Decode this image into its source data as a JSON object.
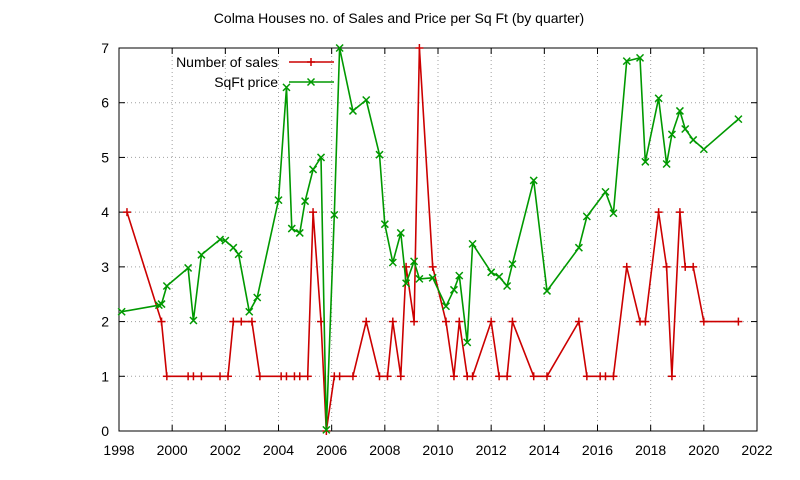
{
  "chart_data": {
    "type": "line",
    "title": "Colma Houses no. of Sales and Price per Sq Ft (by quarter)",
    "xlabel": "",
    "ylabel": "",
    "xlim": [
      1998,
      2022
    ],
    "ylim": [
      0,
      7
    ],
    "x_ticks": [
      1998,
      2000,
      2002,
      2004,
      2006,
      2008,
      2010,
      2012,
      2014,
      2016,
      2018,
      2020,
      2022
    ],
    "y_ticks": [
      0,
      1,
      2,
      3,
      4,
      5,
      6,
      7
    ],
    "grid": true,
    "legend_position": "top-left",
    "series": [
      {
        "name": "Number of sales",
        "color": "#cc0000",
        "marker": "plus",
        "points": [
          [
            1998.3,
            4
          ],
          [
            1999.6,
            2
          ],
          [
            1999.8,
            1
          ],
          [
            2000.6,
            1
          ],
          [
            2000.8,
            1
          ],
          [
            2001.1,
            1
          ],
          [
            2001.8,
            1
          ],
          [
            2002.1,
            1
          ],
          [
            2002.3,
            2
          ],
          [
            2002.6,
            2
          ],
          [
            2003.0,
            2
          ],
          [
            2003.3,
            1
          ],
          [
            2004.1,
            1
          ],
          [
            2004.3,
            1
          ],
          [
            2004.6,
            1
          ],
          [
            2004.8,
            1
          ],
          [
            2005.1,
            1
          ],
          [
            2005.3,
            4
          ],
          [
            2005.6,
            2
          ],
          [
            2005.8,
            0
          ],
          [
            2006.1,
            1
          ],
          [
            2006.3,
            1
          ],
          [
            2006.8,
            1
          ],
          [
            2007.3,
            2
          ],
          [
            2007.8,
            1
          ],
          [
            2008.1,
            1
          ],
          [
            2008.3,
            2
          ],
          [
            2008.6,
            1
          ],
          [
            2008.8,
            3
          ],
          [
            2009.1,
            2
          ],
          [
            2009.3,
            7
          ],
          [
            2009.8,
            3
          ],
          [
            2010.3,
            2
          ],
          [
            2010.6,
            1
          ],
          [
            2010.8,
            2
          ],
          [
            2011.1,
            1
          ],
          [
            2011.3,
            1
          ],
          [
            2012.0,
            2
          ],
          [
            2012.3,
            1
          ],
          [
            2012.6,
            1
          ],
          [
            2012.8,
            2
          ],
          [
            2013.6,
            1
          ],
          [
            2014.1,
            1
          ],
          [
            2015.3,
            2
          ],
          [
            2015.6,
            1
          ],
          [
            2016.1,
            1
          ],
          [
            2016.3,
            1
          ],
          [
            2016.6,
            1
          ],
          [
            2017.1,
            3
          ],
          [
            2017.6,
            2
          ],
          [
            2017.8,
            2
          ],
          [
            2018.3,
            4
          ],
          [
            2018.6,
            3
          ],
          [
            2018.8,
            1
          ],
          [
            2019.1,
            4
          ],
          [
            2019.3,
            3
          ],
          [
            2019.6,
            3
          ],
          [
            2020.0,
            2
          ],
          [
            2021.3,
            2
          ]
        ]
      },
      {
        "name": "SqFt price",
        "color": "#009900",
        "marker": "cross",
        "points": [
          [
            1998.1,
            2.18
          ],
          [
            1999.5,
            2.3
          ],
          [
            1999.6,
            2.32
          ],
          [
            1999.8,
            2.65
          ],
          [
            2000.6,
            2.98
          ],
          [
            2000.8,
            2.02
          ],
          [
            2001.1,
            3.22
          ],
          [
            2001.8,
            3.5
          ],
          [
            2002.0,
            3.48
          ],
          [
            2002.3,
            3.35
          ],
          [
            2002.5,
            3.23
          ],
          [
            2002.9,
            2.18
          ],
          [
            2003.2,
            2.44
          ],
          [
            2004.0,
            4.22
          ],
          [
            2004.3,
            6.28
          ],
          [
            2004.5,
            3.7
          ],
          [
            2004.8,
            3.62
          ],
          [
            2005.0,
            4.2
          ],
          [
            2005.3,
            4.78
          ],
          [
            2005.6,
            5.0
          ],
          [
            2005.8,
            0.02
          ],
          [
            2006.1,
            3.95
          ],
          [
            2006.3,
            7.0
          ],
          [
            2006.8,
            5.85
          ],
          [
            2007.3,
            6.05
          ],
          [
            2007.8,
            5.05
          ],
          [
            2008.0,
            3.78
          ],
          [
            2008.3,
            3.08
          ],
          [
            2008.6,
            3.62
          ],
          [
            2008.8,
            2.7
          ],
          [
            2009.1,
            3.1
          ],
          [
            2009.3,
            2.78
          ],
          [
            2009.8,
            2.8
          ],
          [
            2010.3,
            2.28
          ],
          [
            2010.6,
            2.58
          ],
          [
            2010.8,
            2.84
          ],
          [
            2011.1,
            1.62
          ],
          [
            2011.3,
            3.42
          ],
          [
            2012.0,
            2.9
          ],
          [
            2012.3,
            2.82
          ],
          [
            2012.6,
            2.65
          ],
          [
            2012.8,
            3.05
          ],
          [
            2013.6,
            4.58
          ],
          [
            2014.1,
            2.56
          ],
          [
            2015.3,
            3.35
          ],
          [
            2015.6,
            3.92
          ],
          [
            2016.3,
            4.37
          ],
          [
            2016.6,
            3.98
          ],
          [
            2017.1,
            6.76
          ],
          [
            2017.6,
            6.82
          ],
          [
            2017.8,
            4.92
          ],
          [
            2018.3,
            6.08
          ],
          [
            2018.6,
            4.88
          ],
          [
            2018.8,
            5.42
          ],
          [
            2019.1,
            5.85
          ],
          [
            2019.3,
            5.52
          ],
          [
            2019.6,
            5.32
          ],
          [
            2020.0,
            5.15
          ],
          [
            2021.3,
            5.7
          ]
        ]
      }
    ]
  }
}
